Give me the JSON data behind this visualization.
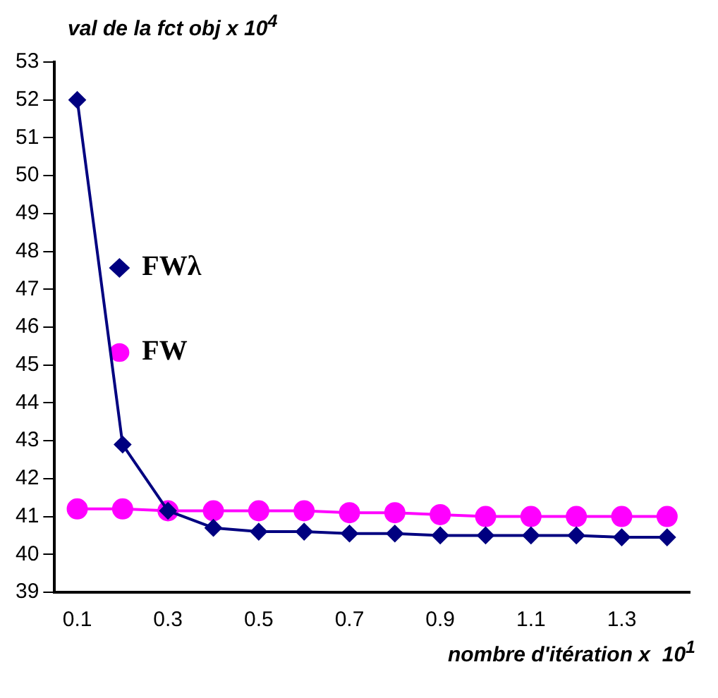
{
  "chart_data": {
    "type": "line",
    "ylabel": "val de la fct obj x 10$^{4}$",
    "xlabel": "nombre d'itération x  10$^{1}$",
    "categories": [
      "0.1",
      null,
      "0.3",
      null,
      "0.5",
      null,
      "0.7",
      null,
      "0.9",
      null,
      "1.1",
      null,
      "1.3",
      null
    ],
    "series": [
      {
        "name": "FWλ",
        "color": "#000080",
        "marker": "diamond",
        "values": [
          52,
          42.9,
          41.15,
          40.7,
          40.6,
          40.6,
          40.55,
          40.55,
          40.5,
          40.5,
          40.5,
          40.5,
          40.45,
          40.45
        ]
      },
      {
        "name": "FW",
        "color": "#ff00ff",
        "marker": "circle",
        "values": [
          41.2,
          41.2,
          41.15,
          41.15,
          41.15,
          41.15,
          41.1,
          41.1,
          41.05,
          41.0,
          41.0,
          41.0,
          41.0,
          41.0
        ]
      }
    ],
    "ylim": [
      39,
      53
    ],
    "yticks": [
      39,
      40,
      41,
      42,
      43,
      44,
      45,
      46,
      47,
      48,
      49,
      50,
      51,
      52,
      53
    ],
    "grid": false,
    "legend": "top"
  }
}
